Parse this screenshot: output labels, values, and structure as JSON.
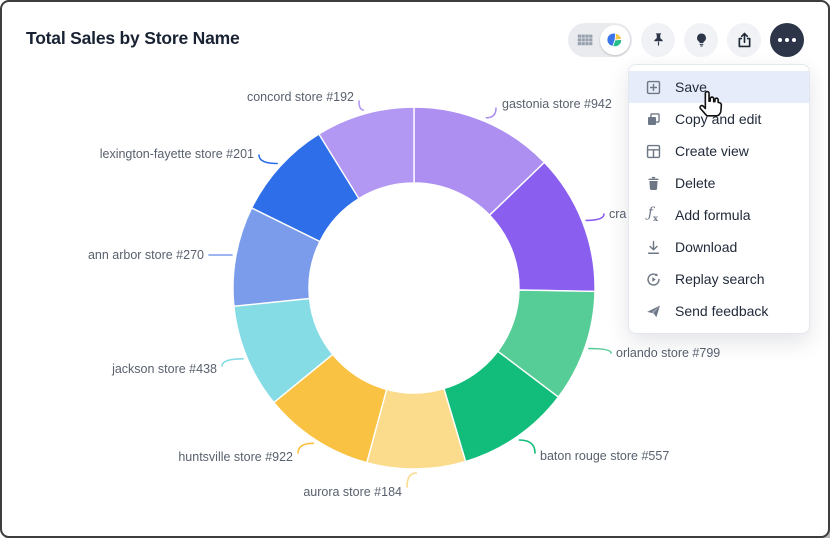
{
  "window": {
    "title": "Total Sales by Store Name"
  },
  "toolbar": {
    "view_toggle": {
      "selected": "chart",
      "table_option_icon": "table-grid-icon",
      "chart_option_icon": "pie-chart-icon"
    },
    "pin_icon": "pushpin-icon",
    "insight_icon": "lightbulb-icon",
    "share_icon": "share-upload-icon",
    "more_icon": "more-ellipsis-icon"
  },
  "menu": {
    "items": [
      {
        "label": "Save",
        "icon": "save-icon",
        "highlighted": true
      },
      {
        "label": "Copy and edit",
        "icon": "copy-icon",
        "highlighted": false
      },
      {
        "label": "Create view",
        "icon": "create-view-icon",
        "highlighted": false
      },
      {
        "label": "Delete",
        "icon": "delete-icon",
        "highlighted": false
      },
      {
        "label": "Add formula",
        "icon": "formula-icon",
        "highlighted": false
      },
      {
        "label": "Download",
        "icon": "download-icon",
        "highlighted": false
      },
      {
        "label": "Replay search",
        "icon": "replay-icon",
        "highlighted": false
      },
      {
        "label": "Send feedback",
        "icon": "send-icon",
        "highlighted": false
      }
    ]
  },
  "cursor": {
    "icon": "hand-pointer-cursor"
  },
  "chart_data": {
    "type": "pie",
    "variant": "donut",
    "title": "Total Sales by Store Name",
    "value_unit": "estimated share (%)",
    "legend_position": "callout-labels",
    "segments": [
      {
        "label": "gastonia store #942",
        "value": 12.8,
        "color": "#ad8ff2",
        "label_truncated": false
      },
      {
        "label": "cra",
        "value": 12.5,
        "color": "#8a5ff0",
        "label_truncated": true
      },
      {
        "label": "orlando store #799",
        "value": 10.0,
        "color": "#56cc96",
        "label_truncated": false
      },
      {
        "label": "baton rouge store #557",
        "value": 10.1,
        "color": "#12bd7b",
        "label_truncated": false
      },
      {
        "label": "aurora store #184",
        "value": 8.8,
        "color": "#fbdc8d",
        "label_truncated": false
      },
      {
        "label": "huntsville store #922",
        "value": 9.9,
        "color": "#fac243",
        "label_truncated": false
      },
      {
        "label": "jackson store #438",
        "value": 9.3,
        "color": "#85dce4",
        "label_truncated": false
      },
      {
        "label": "ann arbor store #270",
        "value": 8.9,
        "color": "#7b9ceb",
        "label_truncated": false
      },
      {
        "label": "lexington-fayette store #201",
        "value": 8.9,
        "color": "#2e6ee9",
        "label_truncated": false
      },
      {
        "label": "concord store #192",
        "value": 8.8,
        "color": "#b298f2",
        "label_truncated": false
      }
    ]
  }
}
